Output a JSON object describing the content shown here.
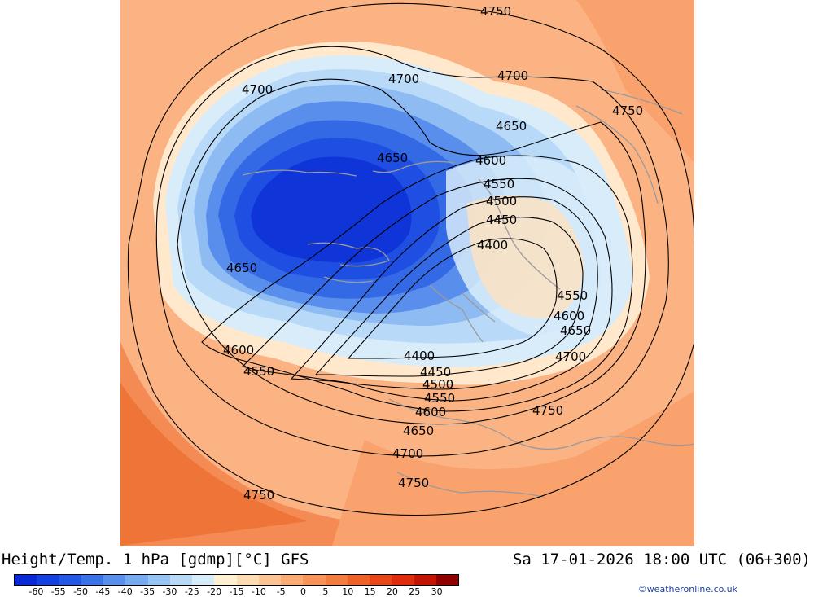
{
  "title": "Height/Temp. 1 hPa [gdmp][°C] GFS",
  "datetime": "Sa 17-01-2026 18:00 UTC (06+300)",
  "credit": "©weatheronline.co.uk",
  "scale": {
    "labels": [
      "-60",
      "-55",
      "-50",
      "-45",
      "-40",
      "-35",
      "-30",
      "-25",
      "-20",
      "-15",
      "-10",
      "-5",
      "0",
      "5",
      "10",
      "15",
      "20",
      "25",
      "30"
    ],
    "colors": [
      "#0a28d8",
      "#1440e0",
      "#2458e4",
      "#3c72e8",
      "#5a8eec",
      "#78aaf0",
      "#98c4f4",
      "#b8daf8",
      "#d6ecfa",
      "#fff0d2",
      "#fddcb4",
      "#fcc494",
      "#fbac74",
      "#f89458",
      "#f47c3e",
      "#ee6228",
      "#e84818",
      "#e02c0c",
      "#c41404",
      "#900000"
    ]
  },
  "contour_labels": [
    "4750",
    "4700",
    "4700",
    "4700",
    "4750",
    "4650",
    "4650",
    "4600",
    "4550",
    "4500",
    "4450",
    "4400",
    "4650",
    "4550",
    "4600",
    "4650",
    "4600",
    "4700",
    "4400",
    "4550",
    "4450",
    "4500",
    "4550",
    "4600",
    "4750",
    "4650",
    "4700",
    "4750",
    "4750"
  ]
}
